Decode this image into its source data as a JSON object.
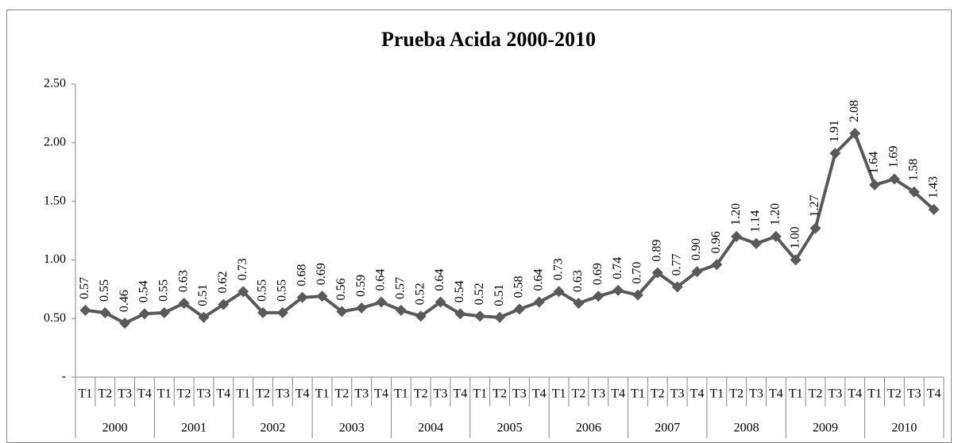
{
  "chart_data": {
    "type": "line",
    "title": "Prueba Acida 2000-2010",
    "categories": [
      "T1",
      "T2",
      "T3",
      "T4",
      "T1",
      "T2",
      "T3",
      "T4",
      "T1",
      "T2",
      "T3",
      "T4",
      "T1",
      "T2",
      "T3",
      "T4",
      "T1",
      "T2",
      "T3",
      "T4",
      "T1",
      "T2",
      "T3",
      "T4",
      "T1",
      "T2",
      "T3",
      "T4",
      "T1",
      "T2",
      "T3",
      "T4",
      "T1",
      "T2",
      "T3",
      "T4",
      "T1",
      "T2",
      "T3",
      "T4",
      "T1",
      "T2",
      "T3",
      "T4"
    ],
    "groups": [
      "2000",
      "2001",
      "2002",
      "2003",
      "2004",
      "2005",
      "2006",
      "2007",
      "2008",
      "2009",
      "2010"
    ],
    "values": [
      0.57,
      0.55,
      0.46,
      0.54,
      0.55,
      0.63,
      0.51,
      0.62,
      0.73,
      0.55,
      0.55,
      0.68,
      0.69,
      0.56,
      0.59,
      0.64,
      0.57,
      0.52,
      0.64,
      0.54,
      0.52,
      0.51,
      0.58,
      0.64,
      0.73,
      0.63,
      0.69,
      0.74,
      0.7,
      0.89,
      0.77,
      0.9,
      0.96,
      1.2,
      1.14,
      1.2,
      1.0,
      1.27,
      1.91,
      2.08,
      1.64,
      1.69,
      1.58,
      1.43
    ],
    "value_labels": [
      "0.57",
      "0.55",
      "0.46",
      "0.54",
      "0.55",
      "0.63",
      "0.51",
      "0.62",
      "0.73",
      "0.55",
      "0.55",
      "0.68",
      "0.69",
      "0.56",
      "0.59",
      "0.64",
      "0.57",
      "0.52",
      "0.64",
      "0.54",
      "0.52",
      "0.51",
      "0.58",
      "0.64",
      "0.73",
      "0.63",
      "0.69",
      "0.74",
      "0.70",
      "0.89",
      "0.77",
      "0.90",
      "0.96",
      "1.20",
      "1.14",
      "1.20",
      "1.00",
      "1.27",
      "1.91",
      "2.08",
      "1.64",
      "1.69",
      "1.58",
      "1.43"
    ],
    "color": "#595959",
    "ylim": [
      0,
      2.5
    ],
    "yticks": [
      {
        "value": 0,
        "label": "-"
      },
      {
        "value": 0.5,
        "label": "0.50"
      },
      {
        "value": 1,
        "label": "1.00"
      },
      {
        "value": 1.5,
        "label": "1.50"
      },
      {
        "value": 2,
        "label": "2.00"
      },
      {
        "value": 2.5,
        "label": "2.50"
      }
    ],
    "grid": false
  }
}
